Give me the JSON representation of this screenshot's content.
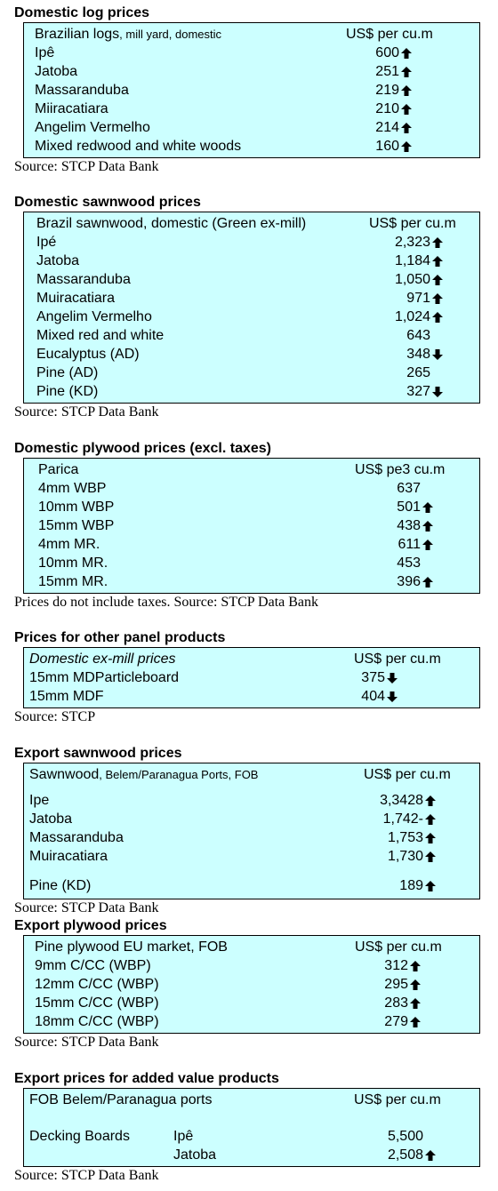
{
  "sections": [
    {
      "title": "Domestic log prices",
      "header": {
        "label": "Brazilian logs",
        "note": ", mill yard, domestic",
        "unit": "US$ per cu.m"
      },
      "rows": [
        {
          "label": "Ipê",
          "value": "600",
          "trend": "up"
        },
        {
          "label": "Jatoba",
          "value": "251",
          "trend": "up"
        },
        {
          "label": "Massaranduba",
          "value": "219",
          "trend": "up"
        },
        {
          "label": "Miiracatiara",
          "value": "210",
          "trend": "up"
        },
        {
          "label": "Angelim Vermelho",
          "value": "214",
          "trend": "up"
        },
        {
          "label": "Mixed redwood and white woods",
          "value": "160",
          "trend": "up"
        }
      ],
      "source": "Source: STCP Data Bank"
    },
    {
      "title": "Domestic sawnwood prices",
      "header": {
        "label": "Brazil sawnwood, domestic (Green ex-mill)",
        "unit": "US$ per cu.m"
      },
      "rows": [
        {
          "label": "Ipé",
          "value": "2,323",
          "trend": "up"
        },
        {
          "label": "Jatoba",
          "value": "1,184",
          "trend": "up"
        },
        {
          "label": "Massaranduba",
          "value": "1,050",
          "trend": "up"
        },
        {
          "label": "Muiracatiara",
          "value": "971",
          "trend": "up"
        },
        {
          "label": "Angelim Vermelho",
          "value": "1,024",
          "trend": "up"
        },
        {
          "label": "Mixed red and white",
          "value": "643"
        },
        {
          "label": "Eucalyptus (AD)",
          "value": "348",
          "trend": "down"
        },
        {
          "label": "Pine (AD)",
          "value": "265"
        },
        {
          "label": "Pine (KD)",
          "value": "327",
          "trend": "down"
        }
      ],
      "source": "Source: STCP Data Bank"
    },
    {
      "title": "Domestic plywood prices (excl. taxes)",
      "header": {
        "label": "Parica",
        "unit": "US$ pe3 cu.m"
      },
      "rows": [
        {
          "label": "4mm WBP",
          "value": "637"
        },
        {
          "label": "10mm WBP",
          "value": "501",
          "trend": "up"
        },
        {
          "label": "15mm WBP",
          "value": "438",
          "trend": "up"
        },
        {
          "label": "4mm MR.",
          "value": "611",
          "trend": "up"
        },
        {
          "label": "10mm MR.",
          "value": "453"
        },
        {
          "label": "15mm MR.",
          "value": "396",
          "trend": "up"
        }
      ],
      "source": "Prices do not include taxes. Source: STCP Data Bank"
    },
    {
      "title": "Prices for other panel products",
      "header": {
        "label": "Domestic ex-mill prices",
        "unit": "US$ per cu.m"
      },
      "rows": [
        {
          "label": "15mm MDParticleboard",
          "value": "375",
          "trend": "down"
        },
        {
          "label": "15mm MDF",
          "value": "404",
          "trend": "down"
        }
      ],
      "source": "Source: STCP"
    },
    {
      "title": "Export sawnwood prices",
      "header": {
        "label": "Sawnwood",
        "note": ", Belem/Paranagua Ports, FOB",
        "unit": "US$ per cu.m"
      },
      "rows": [
        {
          "label": "Ipe",
          "value": "3,3428",
          "trend": "up"
        },
        {
          "label": "Jatoba",
          "value": "1,742-",
          "trend": "up"
        },
        {
          "label": "Massaranduba",
          "value": "1,753",
          "trend": "up"
        },
        {
          "label": "Muiracatiara",
          "value": "1,730",
          "trend": "up"
        },
        {
          "label": "Pine (KD)",
          "value": "189",
          "trend": "up"
        }
      ],
      "source": "Source: STCP Data Bank"
    },
    {
      "title": "Export plywood prices",
      "header": {
        "label": "Pine plywood EU market, FOB",
        "unit": "US$ per cu.m"
      },
      "rows": [
        {
          "label": "9mm C/CC (WBP)",
          "value": "312",
          "trend": "up"
        },
        {
          "label": "12mm C/CC (WBP)",
          "value": "295",
          "trend": "up"
        },
        {
          "label": "15mm C/CC (WBP)",
          "value": "283",
          "trend": "up"
        },
        {
          "label": "18mm C/CC (WBP)",
          "value": "279",
          "trend": "up"
        }
      ],
      "source": "Source: STCP Data Bank"
    },
    {
      "title": "Export prices for added value products",
      "header": {
        "label": "FOB Belem/Paranagua ports",
        "unit": "US$ per cu.m"
      },
      "rows": [
        {
          "label": "Decking Boards",
          "sublabel": "Ipê",
          "value": "5,500"
        },
        {
          "sublabel": "Jatoba",
          "value": "2,508",
          "trend": "up"
        }
      ],
      "source": "Source: STCP Data Bank"
    }
  ]
}
